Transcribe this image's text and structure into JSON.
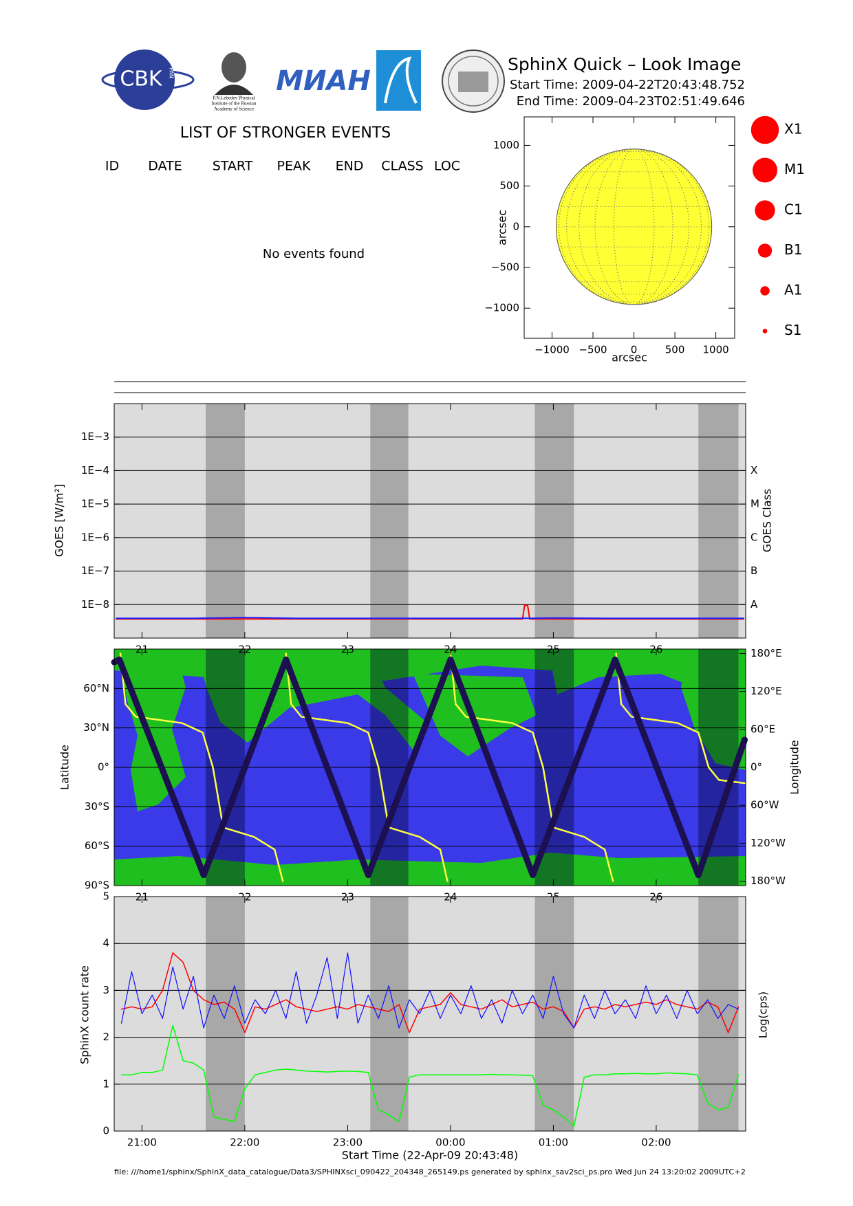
{
  "header": {
    "logos": {
      "cbk": "CBK",
      "pan": "PAN",
      "lebedev": [
        "P.N.Lebedev Physical",
        "Institute of the Russian",
        "Academy of Science"
      ],
      "mian": "МИАН"
    },
    "title": "SphinX Quick – Look Image",
    "start_time": "Start Time: 2009-04-22T20:43:48.752",
    "end_time": "End Time: 2009-04-23T02:51:49.646"
  },
  "events": {
    "title": "LIST OF STRONGER EVENTS",
    "columns": [
      "ID",
      "DATE",
      "START",
      "PEAK",
      "END",
      "CLASS",
      "LOC"
    ],
    "message": "No events found"
  },
  "footer": "file: ///home1/sphinx/SphinX_data_catalogue/Data3/SPHINXsci_090422_204348_265149.ps generated by sphinx_sav2sci_ps.pro Wed Jun 24 13:20:02 2009UTC+2",
  "chart_data": [
    {
      "type": "disk",
      "xlabel": "arcsec",
      "ylabel": "arcsec",
      "xlim": [
        -1340,
        1230
      ],
      "ylim": [
        -1370,
        1350
      ],
      "xticks": [
        {
          "value": -1000,
          "label": "−1000"
        },
        {
          "value": -500,
          "label": "−500"
        },
        0,
        500,
        1000
      ],
      "yticks": [
        {
          "value": -1000,
          "label": "−1000"
        },
        {
          "value": -500,
          "label": "−500"
        },
        0,
        500,
        1000
      ],
      "radius": 950,
      "color": "#ffff33",
      "disk_grid": true,
      "legend": {
        "labels": [
          "X1",
          "M1",
          "C1",
          "B1",
          "A1",
          "S1"
        ],
        "sizes": [
          18,
          16,
          13,
          9,
          6,
          3
        ],
        "color": "#ff0000"
      }
    },
    {
      "type": "line",
      "ylabel": "GOES [W/m²]",
      "y2label": "GOES Class",
      "log_scale": true,
      "grid": true,
      "xlim": [
        20.73,
        26.87
      ],
      "xticks": [
        21,
        22,
        23,
        24,
        25,
        26
      ],
      "ylim": [
        1e-09,
        0.01
      ],
      "yticks": [
        {
          "value": 1e-08,
          "label": "1E−8"
        },
        {
          "value": 1e-07,
          "label": "1E−7"
        },
        {
          "value": 1e-06,
          "label": "1E−6"
        },
        {
          "value": 1e-05,
          "label": "1E−5"
        },
        {
          "value": 0.0001,
          "label": "1E−4"
        },
        {
          "value": 0.001,
          "label": "1E−3"
        }
      ],
      "y2lim": [
        1e-09,
        0.01
      ],
      "y2ticks": [
        {
          "value": 1e-08,
          "label": "A"
        },
        {
          "value": 1e-07,
          "label": "B"
        },
        {
          "value": 1e-06,
          "label": "C"
        },
        {
          "value": 1e-05,
          "label": "M"
        },
        {
          "value": 0.0001,
          "label": "X"
        }
      ],
      "shaded_intervals": [
        [
          21.62,
          22.0
        ],
        [
          23.22,
          23.59
        ],
        [
          24.82,
          25.2
        ],
        [
          26.41,
          26.8
        ]
      ],
      "shade_color": "#a8a8a8",
      "x": [
        20.75,
        21.0,
        21.5,
        22.0,
        22.5,
        23.0,
        23.5,
        24.0,
        24.5,
        24.7,
        24.72,
        24.75,
        24.77,
        25.0,
        25.5,
        26.0,
        26.5,
        26.85
      ],
      "series": [
        {
          "color": "#ff0000",
          "width": 2,
          "values": [
            3.7e-09,
            3.7e-09,
            3.7e-09,
            3.7e-09,
            3.7e-09,
            3.7e-09,
            3.7e-09,
            3.7e-09,
            3.7e-09,
            3.7e-09,
            9.5e-09,
            9.5e-09,
            3.7e-09,
            3.7e-09,
            3.7e-09,
            3.7e-09,
            3.7e-09,
            3.7e-09
          ]
        },
        {
          "color": "#2020ff",
          "width": 2,
          "values": [
            3.9e-09,
            3.9e-09,
            3.9e-09,
            4.1e-09,
            3.9e-09,
            3.9e-09,
            3.9e-09,
            3.9e-09,
            3.9e-09,
            3.9e-09,
            3.9e-09,
            3.9e-09,
            3.9e-09,
            4e-09,
            3.9e-09,
            3.9e-09,
            3.9e-09,
            3.9e-09
          ]
        }
      ]
    },
    {
      "type": "line",
      "ylabel": "Latitude",
      "y2label": "Longitude",
      "grid": true,
      "xlim": [
        20.73,
        26.87
      ],
      "xticks": [
        21,
        22,
        23,
        24,
        25,
        26
      ],
      "ylim": [
        -90,
        90
      ],
      "yticks": [
        {
          "value": -90,
          "label": "90°S"
        },
        {
          "value": -60,
          "label": "60°S"
        },
        {
          "value": -30,
          "label": "30°S"
        },
        {
          "value": 0,
          "label": "0°"
        },
        {
          "value": 30,
          "label": "30°N"
        },
        {
          "value": 60,
          "label": "60°N"
        }
      ],
      "y2lim": [
        -187,
        187
      ],
      "y2ticks": [
        {
          "value": -180,
          "label": "180°W"
        },
        {
          "value": -120,
          "label": "120°W"
        },
        {
          "value": -60,
          "label": "60°W"
        },
        {
          "value": 0,
          "label": "0°"
        },
        {
          "value": 60,
          "label": "60°E"
        },
        {
          "value": 120,
          "label": "120°E"
        },
        {
          "value": 180,
          "label": "180°E"
        }
      ],
      "shaded_intervals": [
        [
          21.62,
          22.0
        ],
        [
          23.22,
          23.59
        ],
        [
          24.82,
          25.2
        ],
        [
          26.41,
          26.8
        ]
      ],
      "shade_color": "rgba(0,0,40,0.38)",
      "series": [
        {
          "color": "#ffff40",
          "width": 2.5,
          "axis": "y2",
          "x": [
            20.79,
            20.84,
            20.94,
            21.39,
            21.59,
            21.69,
            21.79,
            22.09,
            22.29,
            22.37,
            22.38,
            22.4,
            22.45,
            22.55,
            23.0,
            23.2,
            23.3,
            23.4,
            23.7,
            23.9,
            23.97,
            23.98,
            24.0,
            24.05,
            24.15,
            24.6,
            24.8,
            24.9,
            25.0,
            25.3,
            25.5,
            25.58,
            25.6,
            25.61,
            25.66,
            25.76,
            26.21,
            26.41,
            26.51,
            26.61,
            26.86
          ],
          "values": [
            180,
            100,
            80,
            70,
            55,
            0,
            -95,
            -110,
            -130,
            -180,
            null,
            180,
            100,
            80,
            70,
            55,
            0,
            -95,
            -110,
            -130,
            -180,
            null,
            180,
            100,
            80,
            70,
            55,
            0,
            -95,
            -110,
            -130,
            -180,
            null,
            180,
            100,
            80,
            70,
            55,
            0,
            -20,
            -25
          ]
        },
        {
          "color": "#1c1050",
          "width": 9,
          "x": [
            20.73,
            20.78,
            21.6,
            22.4,
            23.2,
            24.0,
            24.8,
            25.6,
            26.41,
            26.86
          ],
          "values": [
            80,
            82,
            -82,
            82,
            -82,
            82,
            -82,
            82,
            -82,
            21
          ]
        }
      ]
    },
    {
      "type": "line",
      "xlabel": "Start Time (22-Apr-09 20:43:48)",
      "ylabel": "SphinX count rate",
      "y2label": "Log(cps)",
      "grid": true,
      "xlim": [
        20.73,
        26.87
      ],
      "xticks": [
        {
          "value": 21,
          "label": "21:00"
        },
        {
          "value": 22,
          "label": "22:00"
        },
        {
          "value": 23,
          "label": "23:00"
        },
        {
          "value": 24,
          "label": "00:00"
        },
        {
          "value": 25,
          "label": "01:00"
        },
        {
          "value": 26,
          "label": "02:00"
        }
      ],
      "ylim": [
        0,
        5
      ],
      "yticks": [
        0,
        1,
        2,
        3,
        4,
        5
      ],
      "shaded_intervals": [
        [
          21.62,
          22.0
        ],
        [
          23.22,
          23.59
        ],
        [
          24.82,
          25.2
        ],
        [
          26.41,
          26.8
        ]
      ],
      "shade_color": "#a8a8a8",
      "x": [
        20.8,
        20.9,
        21.0,
        21.1,
        21.2,
        21.3,
        21.4,
        21.5,
        21.6,
        21.7,
        21.8,
        21.9,
        22.0,
        22.1,
        22.2,
        22.3,
        22.4,
        22.5,
        22.6,
        22.7,
        22.8,
        22.9,
        23.0,
        23.1,
        23.2,
        23.3,
        23.4,
        23.5,
        23.6,
        23.7,
        23.8,
        23.9,
        24.0,
        24.1,
        24.2,
        24.3,
        24.4,
        24.5,
        24.6,
        24.7,
        24.8,
        24.9,
        25.0,
        25.1,
        25.2,
        25.3,
        25.4,
        25.5,
        25.6,
        25.7,
        25.8,
        25.9,
        26.0,
        26.1,
        26.2,
        26.3,
        26.4,
        26.5,
        26.6,
        26.7,
        26.8
      ],
      "series": [
        {
          "color": "#00ff00",
          "width": 1.5,
          "values": [
            1.2,
            1.2,
            1.25,
            1.25,
            1.3,
            2.25,
            1.5,
            1.45,
            1.3,
            0.3,
            0.25,
            0.2,
            0.9,
            1.2,
            1.25,
            1.3,
            1.32,
            1.3,
            1.28,
            1.27,
            1.26,
            1.27,
            1.28,
            1.27,
            1.25,
            0.45,
            0.35,
            0.2,
            1.15,
            1.2,
            1.2,
            1.2,
            1.2,
            1.2,
            1.2,
            1.2,
            1.21,
            1.2,
            1.2,
            1.19,
            1.18,
            0.55,
            0.45,
            0.3,
            0.1,
            1.15,
            1.2,
            1.2,
            1.22,
            1.22,
            1.23,
            1.22,
            1.22,
            1.24,
            1.23,
            1.22,
            1.2,
            0.6,
            0.45,
            0.5,
            1.2
          ]
        },
        {
          "color": "#ff0000",
          "width": 1.5,
          "values": [
            2.6,
            2.65,
            2.6,
            2.65,
            3.0,
            3.8,
            3.6,
            3.0,
            2.8,
            2.7,
            2.75,
            2.6,
            2.1,
            2.65,
            2.6,
            2.7,
            2.8,
            2.65,
            2.6,
            2.55,
            2.6,
            2.65,
            2.6,
            2.7,
            2.65,
            2.6,
            2.55,
            2.7,
            2.1,
            2.6,
            2.65,
            2.7,
            2.95,
            2.7,
            2.65,
            2.6,
            2.7,
            2.8,
            2.65,
            2.7,
            2.75,
            2.6,
            2.65,
            2.55,
            2.2,
            2.6,
            2.65,
            2.6,
            2.7,
            2.65,
            2.7,
            2.75,
            2.7,
            2.8,
            2.7,
            2.65,
            2.6,
            2.75,
            2.65,
            2.1,
            2.65
          ]
        },
        {
          "color": "#1010ff",
          "width": 1.2,
          "values": [
            2.3,
            3.4,
            2.5,
            2.9,
            2.4,
            3.5,
            2.6,
            3.3,
            2.2,
            2.9,
            2.4,
            3.1,
            2.3,
            2.8,
            2.5,
            3.0,
            2.4,
            3.4,
            2.3,
            2.9,
            3.7,
            2.4,
            3.8,
            2.3,
            2.9,
            2.4,
            3.1,
            2.2,
            2.8,
            2.5,
            3.0,
            2.4,
            2.9,
            2.5,
            3.1,
            2.4,
            2.8,
            2.3,
            3.0,
            2.5,
            2.9,
            2.4,
            3.3,
            2.5,
            2.2,
            2.9,
            2.4,
            3.0,
            2.5,
            2.8,
            2.4,
            3.1,
            2.5,
            2.9,
            2.4,
            3.0,
            2.5,
            2.8,
            2.4,
            2.7,
            2.6
          ]
        }
      ]
    }
  ]
}
